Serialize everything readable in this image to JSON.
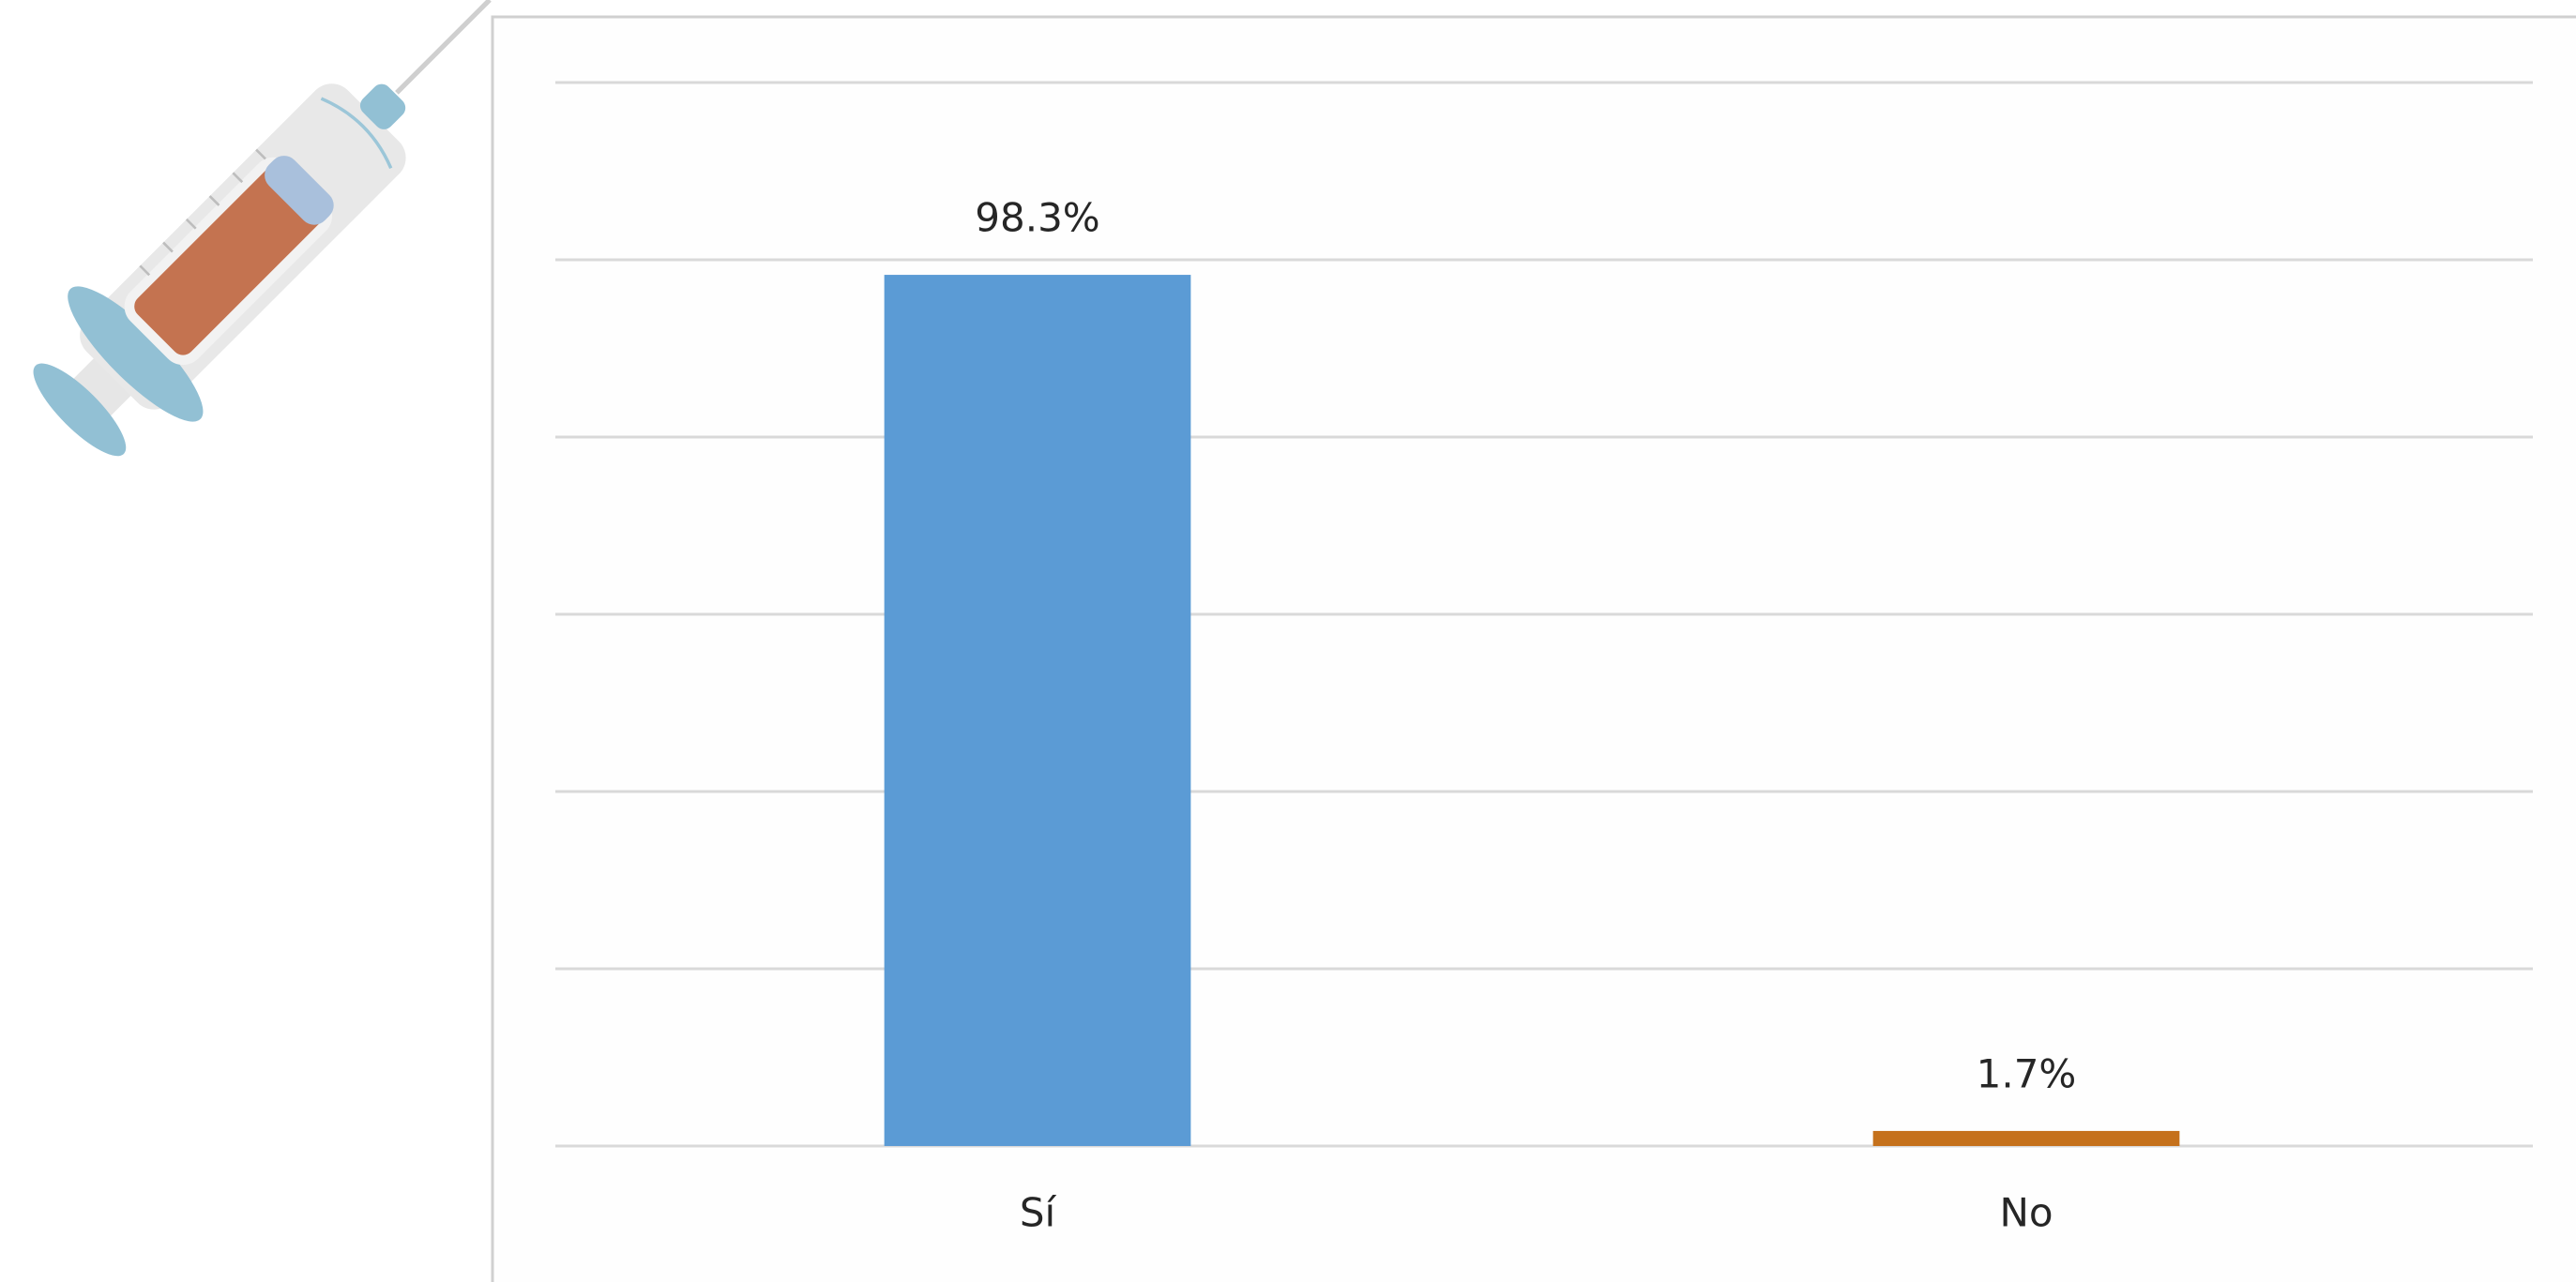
{
  "chart_data": {
    "type": "bar",
    "categories": [
      "Sí",
      "No"
    ],
    "values": [
      98.3,
      1.7
    ],
    "value_labels": [
      "98.3%",
      "1.7%"
    ],
    "colors": [
      "#5b9bd5",
      "#c5711c"
    ],
    "ylim": [
      0,
      120
    ],
    "yticks": [
      0,
      20,
      40,
      60,
      80,
      100,
      120
    ],
    "grid": true
  }
}
